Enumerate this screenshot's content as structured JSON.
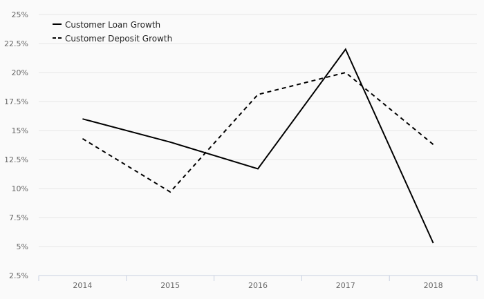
{
  "chart_data": {
    "type": "line",
    "categories": [
      "2014",
      "2015",
      "2016",
      "2017",
      "2018"
    ],
    "series": [
      {
        "name": "Customer Loan Growth",
        "values": [
          16.0,
          14.0,
          11.7,
          22.0,
          5.3
        ],
        "style": "solid",
        "color": "#000000"
      },
      {
        "name": "Customer Deposit Growth",
        "values": [
          14.3,
          9.7,
          18.1,
          20.0,
          13.8
        ],
        "style": "dashed",
        "color": "#000000"
      }
    ],
    "yticks": [
      "2.5%",
      "5%",
      "7.5%",
      "10%",
      "12.5%",
      "15%",
      "17.5%",
      "20%",
      "22.5%",
      "25%"
    ],
    "ylim": [
      2.5,
      25
    ],
    "grid": true,
    "legend_position": "top-left"
  }
}
